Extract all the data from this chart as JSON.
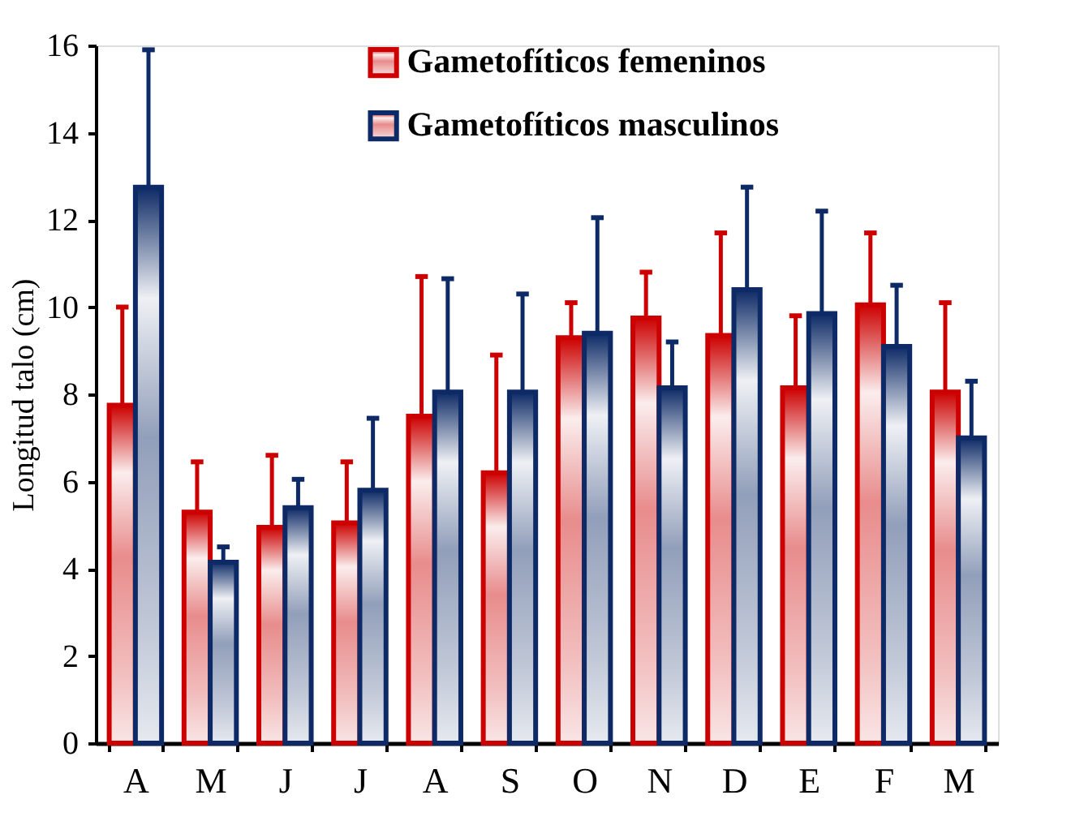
{
  "chart_data": {
    "type": "bar",
    "ylabel": "Longitud talo (cm)",
    "categories": [
      "A",
      "M",
      "J",
      "J",
      "A",
      "S",
      "O",
      "N",
      "D",
      "E",
      "F",
      "M"
    ],
    "series": [
      {
        "name": "Gametofíticos femeninos",
        "color": "#cc0000",
        "values": [
          7.75,
          5.3,
          4.95,
          5.05,
          7.5,
          6.2,
          9.3,
          9.75,
          9.35,
          8.15,
          10.05,
          8.05
        ],
        "errors": [
          [
            7.75,
            10.0
          ],
          [
            5.3,
            6.45
          ],
          [
            4.95,
            6.6
          ],
          [
            5.05,
            6.45
          ],
          [
            7.5,
            10.7
          ],
          [
            6.2,
            8.9
          ],
          [
            9.3,
            10.1
          ],
          [
            9.75,
            10.8
          ],
          [
            9.35,
            11.7
          ],
          [
            8.15,
            9.8
          ],
          [
            10.05,
            11.7
          ],
          [
            8.05,
            10.1
          ]
        ]
      },
      {
        "name": "Gametofíticos masculinos",
        "color": "#0d2a66",
        "values": [
          12.75,
          4.15,
          5.4,
          5.8,
          8.05,
          8.05,
          9.4,
          8.15,
          10.4,
          9.85,
          9.1,
          7.0
        ],
        "errors": [
          [
            12.75,
            15.9
          ],
          [
            4.15,
            4.5
          ],
          [
            5.4,
            6.05
          ],
          [
            5.8,
            7.45
          ],
          [
            8.05,
            10.65
          ],
          [
            8.05,
            10.3
          ],
          [
            9.4,
            12.05
          ],
          [
            8.15,
            9.2
          ],
          [
            10.4,
            12.75
          ],
          [
            9.85,
            12.2
          ],
          [
            9.1,
            10.5
          ],
          [
            7.0,
            8.3
          ]
        ]
      }
    ],
    "ylim": [
      0,
      16
    ],
    "yticks": [
      0,
      2,
      4,
      6,
      8,
      10,
      12,
      14,
      16
    ],
    "grid": false,
    "legend": "top"
  }
}
